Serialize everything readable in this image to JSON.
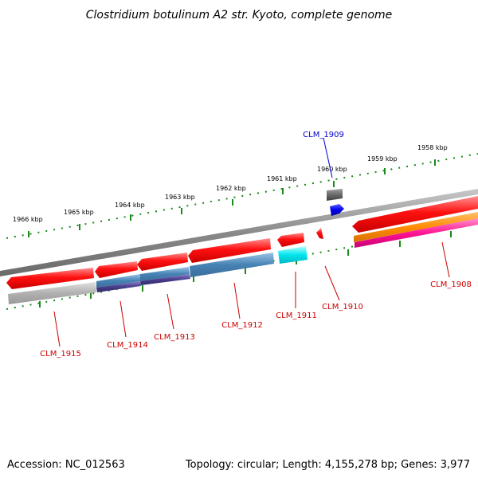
{
  "title": "Clostridium botulinum A2 str. Kyoto, complete genome",
  "footer": {
    "accession": "Accession: NC_012563",
    "topology": "Topology: circular; Length: 4,155,278 bp; Genes: 3,977"
  },
  "scale_labels": [
    "1966 kbp",
    "1965 kbp",
    "1964 kbp",
    "1963 kbp",
    "1962 kbp",
    "1961 kbp",
    "1960 kbp",
    "1959 kbp",
    "1958 kbp"
  ],
  "gene_labels": {
    "clm1909": "CLM_1909",
    "clm1908": "CLM_1908",
    "clm1910": "CLM_1910",
    "clm1911": "CLM_1911",
    "clm1912": "CLM_1912",
    "clm1913": "CLM_1913",
    "clm1914": "CLM_1914",
    "clm1915": "CLM_1915"
  },
  "colors": {
    "gene_red": "#e8000b",
    "label_red": "#cc0000",
    "label_blue": "#0000cc",
    "backbone": "#808080",
    "tick_green": "#1a8a1a",
    "steel_blue": "#4682b4",
    "dark_purple": "#483d8b",
    "cyan": "#00e5ee",
    "orange": "#ff8c00",
    "magenta": "#ff1493",
    "gray_block": "#a9a9a9",
    "dark_gray": "#696969",
    "blue": "#0000ee"
  }
}
